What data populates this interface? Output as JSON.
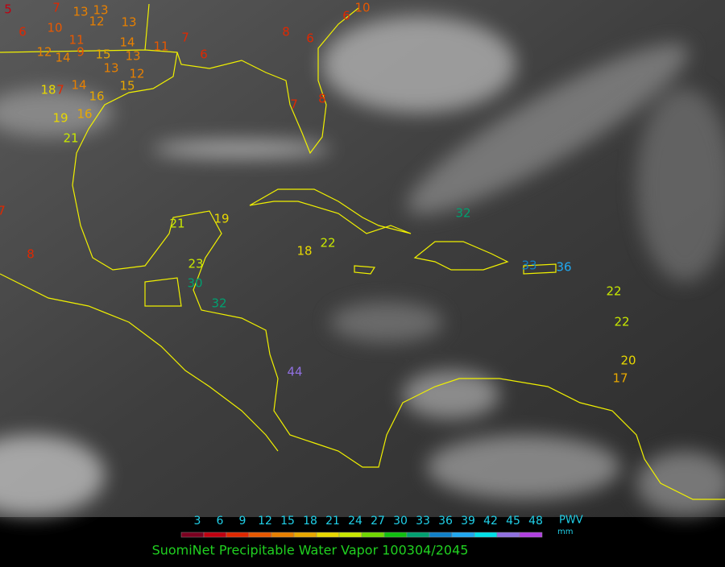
{
  "map": {
    "stations": [
      5,
      7,
      13,
      13,
      13,
      6,
      10,
      11,
      12,
      12,
      14,
      9,
      15,
      13,
      13,
      14,
      11,
      7,
      6,
      12,
      15,
      14,
      7,
      18,
      16,
      16,
      19,
      21,
      7,
      8,
      8,
      6,
      6,
      10,
      7,
      8,
      21,
      19,
      18,
      22,
      23,
      30,
      32,
      44,
      32,
      33,
      36,
      22,
      22,
      20,
      17
    ]
  },
  "colorbar": {
    "colors": [
      "#7a0020",
      "#c00010",
      "#e02800",
      "#e85800",
      "#e88000",
      "#e8a800",
      "#e8d800",
      "#c8e800",
      "#70d800",
      "#10c010",
      "#00a070",
      "#1080c8",
      "#20a8f0",
      "#00e0e8",
      "#9070e0",
      "#b040e0"
    ],
    "ticks": [
      3,
      6,
      9,
      12,
      15,
      18,
      21,
      24,
      27,
      30,
      33,
      36,
      39,
      42,
      45,
      48
    ]
  },
  "units": {
    "name": "PWV",
    "unit": "mm"
  },
  "title": "SuomiNet Precipitable Water Vapor 100304/2045"
}
